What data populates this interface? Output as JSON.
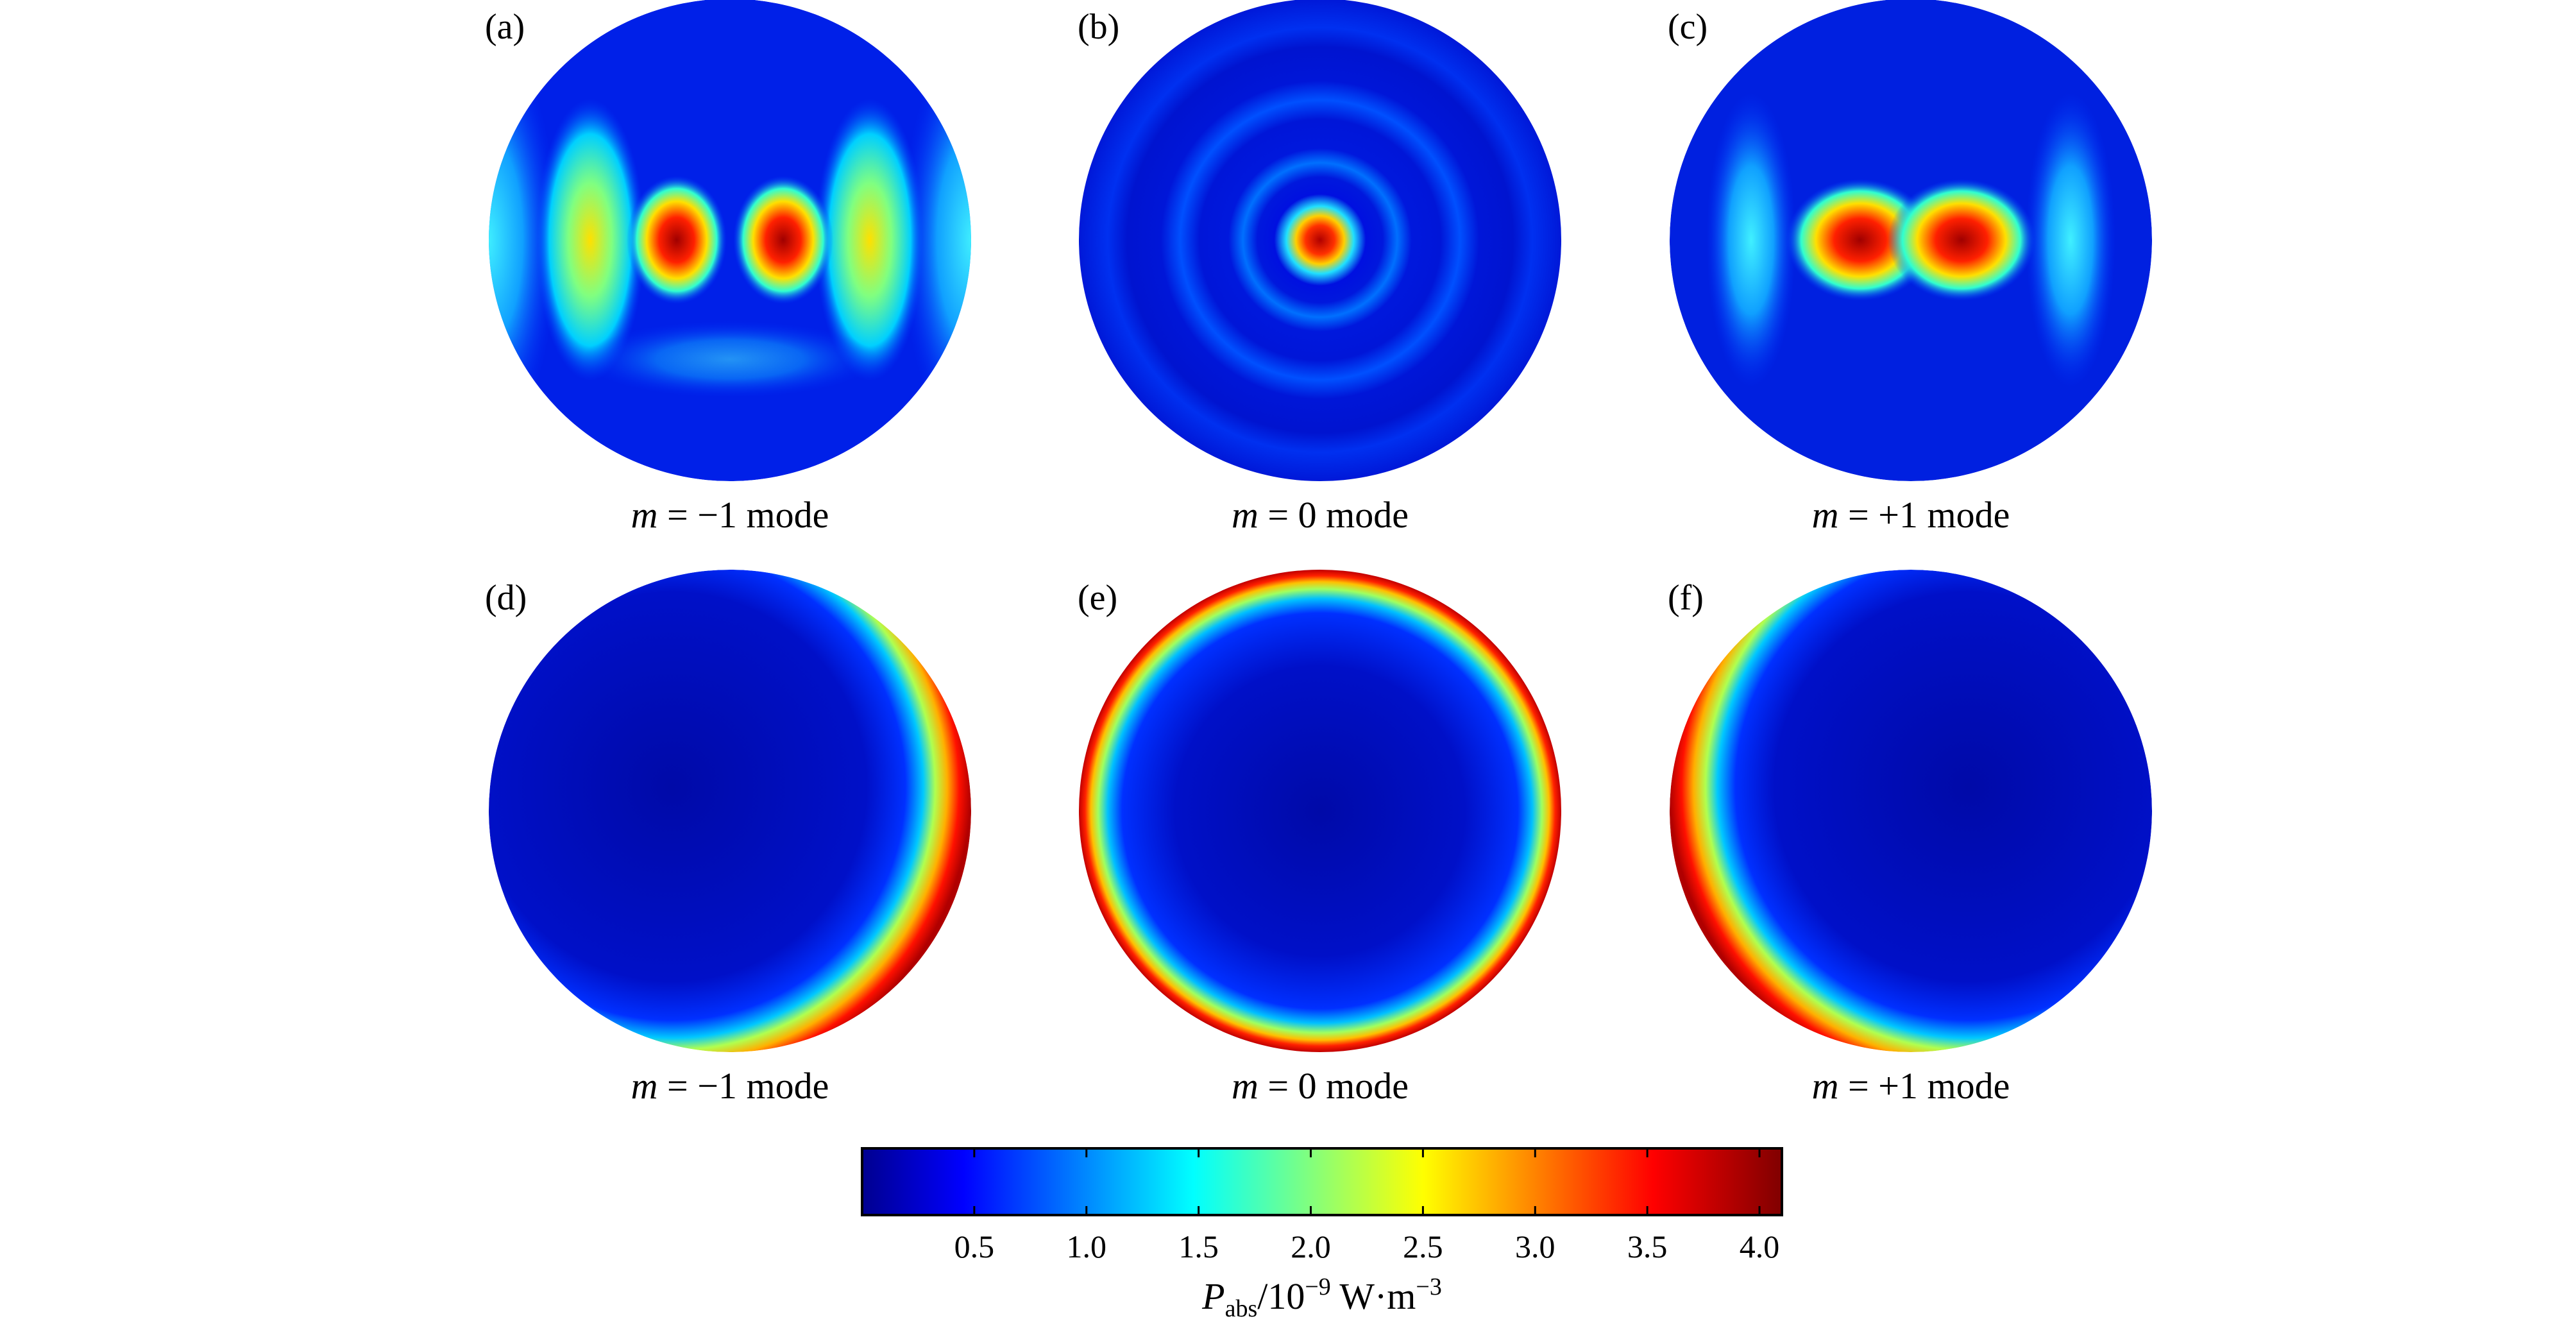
{
  "panels": [
    {
      "id": "a",
      "label": "(a)",
      "caption_var": "m",
      "caption_rest": " = −1 mode",
      "pattern": "m_minus1_center"
    },
    {
      "id": "b",
      "label": "(b)",
      "caption_var": "m",
      "caption_rest": " = 0 mode",
      "pattern": "m0_center"
    },
    {
      "id": "c",
      "label": "(c)",
      "caption_var": "m",
      "caption_rest": " = +1 mode",
      "pattern": "m_plus1_center"
    },
    {
      "id": "d",
      "label": "(d)",
      "caption_var": "m",
      "caption_rest": " = −1 mode",
      "pattern": "m_minus1_edge"
    },
    {
      "id": "e",
      "label": "(e)",
      "caption_var": "m",
      "caption_rest": " = 0 mode",
      "pattern": "m0_edge"
    },
    {
      "id": "f",
      "label": "(f)",
      "caption_var": "m",
      "caption_rest": " = +1 mode",
      "pattern": "m_plus1_edge"
    }
  ],
  "colorbar": {
    "colormap": "jet",
    "range": [
      0,
      4.1
    ],
    "ticks": [
      "0.5",
      "1.0",
      "1.5",
      "2.0",
      "2.5",
      "3.0",
      "3.5",
      "4.0"
    ],
    "label_var": "P",
    "label_sub": "abs",
    "label_mid": "/10",
    "label_sup1": "−9",
    "label_unit": " W·m",
    "label_sup2": "−3"
  },
  "colors": {
    "jet": [
      "#00008f",
      "#0000ff",
      "#00ffff",
      "#ffff00",
      "#ff0000",
      "#800000"
    ],
    "background": "#ffffff"
  }
}
